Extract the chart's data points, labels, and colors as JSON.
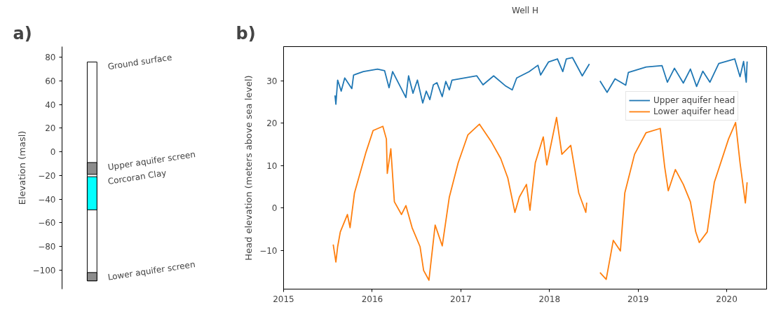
{
  "chart_data": [
    {
      "type": "bar",
      "ylabel": "Elevation (masl)",
      "categories": [
        null
      ],
      "ylim": [
        -116,
        89
      ],
      "yticks": [
        -100,
        -80,
        -60,
        -40,
        -20,
        0,
        20,
        40,
        60,
        80
      ],
      "tick_labels": "y",
      "grid": false,
      "series": [
        {
          "color": "#ffffff",
          "base": [
            -109
          ],
          "values": [
            185
          ]
        },
        {
          "color": "#8c8c8c",
          "base": [
            -19
          ],
          "values": [
            10
          ]
        },
        {
          "color": "#00ffff",
          "base": [
            -49
          ],
          "values": [
            28
          ]
        },
        {
          "color": "#8c8c8c",
          "base": [
            -109
          ],
          "values": [
            7
          ]
        }
      ],
      "annotations": [
        "a)",
        "Ground surface",
        "Upper aquifer screen",
        "Corcoran Clay",
        "Lower aquifer screen"
      ]
    },
    {
      "type": "line",
      "title": "Well H",
      "ylabel": "Head elevation (meters above sea level)",
      "xlim": [
        2015,
        2020.45
      ],
      "xticks": [
        2015,
        2016,
        2017,
        2018,
        2019,
        2020
      ],
      "ylim": [
        -19.1,
        38.1
      ],
      "yticks": [
        -10,
        0,
        10,
        20,
        30
      ],
      "grid": false,
      "legend": "right",
      "annotations": [
        "b)"
      ],
      "series": [
        {
          "name": "Upper aquifer head",
          "color": "#1f77b4",
          "x": [
            2015.58,
            2015.59,
            2015.61,
            2015.65,
            2015.69,
            2015.77,
            2015.79,
            2015.9,
            2016.06,
            2016.14,
            2016.19,
            2016.23,
            2016.38,
            2016.41,
            2016.46,
            2016.51,
            2016.57,
            2016.61,
            2016.65,
            2016.69,
            2016.73,
            2016.79,
            2016.83,
            2016.87,
            2016.9,
            2017.18,
            2017.25,
            2017.37,
            2017.5,
            2017.58,
            2017.63,
            2017.77,
            2017.87,
            2017.9,
            2017.99,
            2018.09,
            2018.15,
            2018.19,
            2018.26,
            2018.37,
            2018.45,
            2018.5,
            2018.57,
            2018.65,
            2018.74,
            2018.86,
            2018.89,
            2019.09,
            2019.27,
            2019.33,
            2019.41,
            2019.51,
            2019.59,
            2019.66,
            2019.73,
            2019.81,
            2019.91,
            2020.09,
            2020.15,
            2020.19,
            2020.22,
            2020.23
          ],
          "values": [
            26.6,
            24.5,
            30.2,
            27.6,
            30.7,
            28.2,
            31.4,
            32.2,
            32.8,
            32.4,
            28.4,
            32.2,
            26.1,
            31.2,
            27.1,
            30.2,
            24.8,
            27.6,
            25.6,
            29.1,
            29.6,
            26.3,
            29.9,
            27.9,
            30.2,
            31.2,
            29.1,
            31.2,
            28.9,
            27.9,
            30.7,
            32.2,
            33.7,
            31.4,
            34.5,
            35.2,
            32.2,
            35.2,
            35.5,
            31.2,
            34.0,
            null,
            30.0,
            27.3,
            30.5,
            29.0,
            32.0,
            33.3,
            33.6,
            29.7,
            33.0,
            29.5,
            32.8,
            28.7,
            32.3,
            29.7,
            34.1,
            35.2,
            31.0,
            34.6,
            29.7,
            34.6
          ]
        },
        {
          "name": "Lower aquifer head",
          "color": "#ff7f0e",
          "x": [
            2015.56,
            2015.59,
            2015.61,
            2015.64,
            2015.72,
            2015.75,
            2015.8,
            2015.93,
            2016.01,
            2016.12,
            2016.16,
            2016.17,
            2016.21,
            2016.25,
            2016.33,
            2016.38,
            2016.45,
            2016.54,
            2016.58,
            2016.64,
            2016.71,
            2016.79,
            2016.87,
            2016.97,
            2017.08,
            2017.21,
            2017.34,
            2017.45,
            2017.53,
            2017.61,
            2017.66,
            2017.74,
            2017.78,
            2017.84,
            2017.93,
            2017.97,
            2018.08,
            2018.14,
            2018.24,
            2018.33,
            2018.41,
            2018.42,
            2018.5,
            2018.57,
            2018.64,
            2018.72,
            2018.8,
            2018.85,
            2018.96,
            2019.09,
            2019.25,
            2019.3,
            2019.34,
            2019.42,
            2019.51,
            2019.59,
            2019.65,
            2019.69,
            2019.78,
            2019.86,
            2020.02,
            2020.1,
            2020.15,
            2020.21,
            2020.23
          ],
          "values": [
            -8.6,
            -12.7,
            -9.1,
            -5.6,
            -1.5,
            -4.6,
            3.6,
            13.2,
            18.3,
            19.3,
            16.3,
            8.2,
            14.0,
            1.5,
            -1.5,
            0.6,
            -4.6,
            -9.1,
            -14.7,
            -17.0,
            -4.0,
            -8.9,
            2.6,
            10.7,
            17.3,
            19.8,
            15.8,
            11.7,
            7.1,
            -1.0,
            2.6,
            5.6,
            -0.5,
            10.7,
            16.8,
            10.2,
            21.4,
            12.7,
            14.8,
            3.6,
            -1.0,
            1.3,
            null,
            -15.2,
            -16.8,
            -7.6,
            -10.1,
            3.6,
            12.7,
            17.8,
            18.8,
            9.7,
            4.1,
            9.1,
            5.6,
            1.5,
            -5.6,
            -8.1,
            -5.6,
            6.1,
            16.3,
            20.2,
            10.7,
            1.2,
            6.1
          ]
        }
      ]
    }
  ]
}
